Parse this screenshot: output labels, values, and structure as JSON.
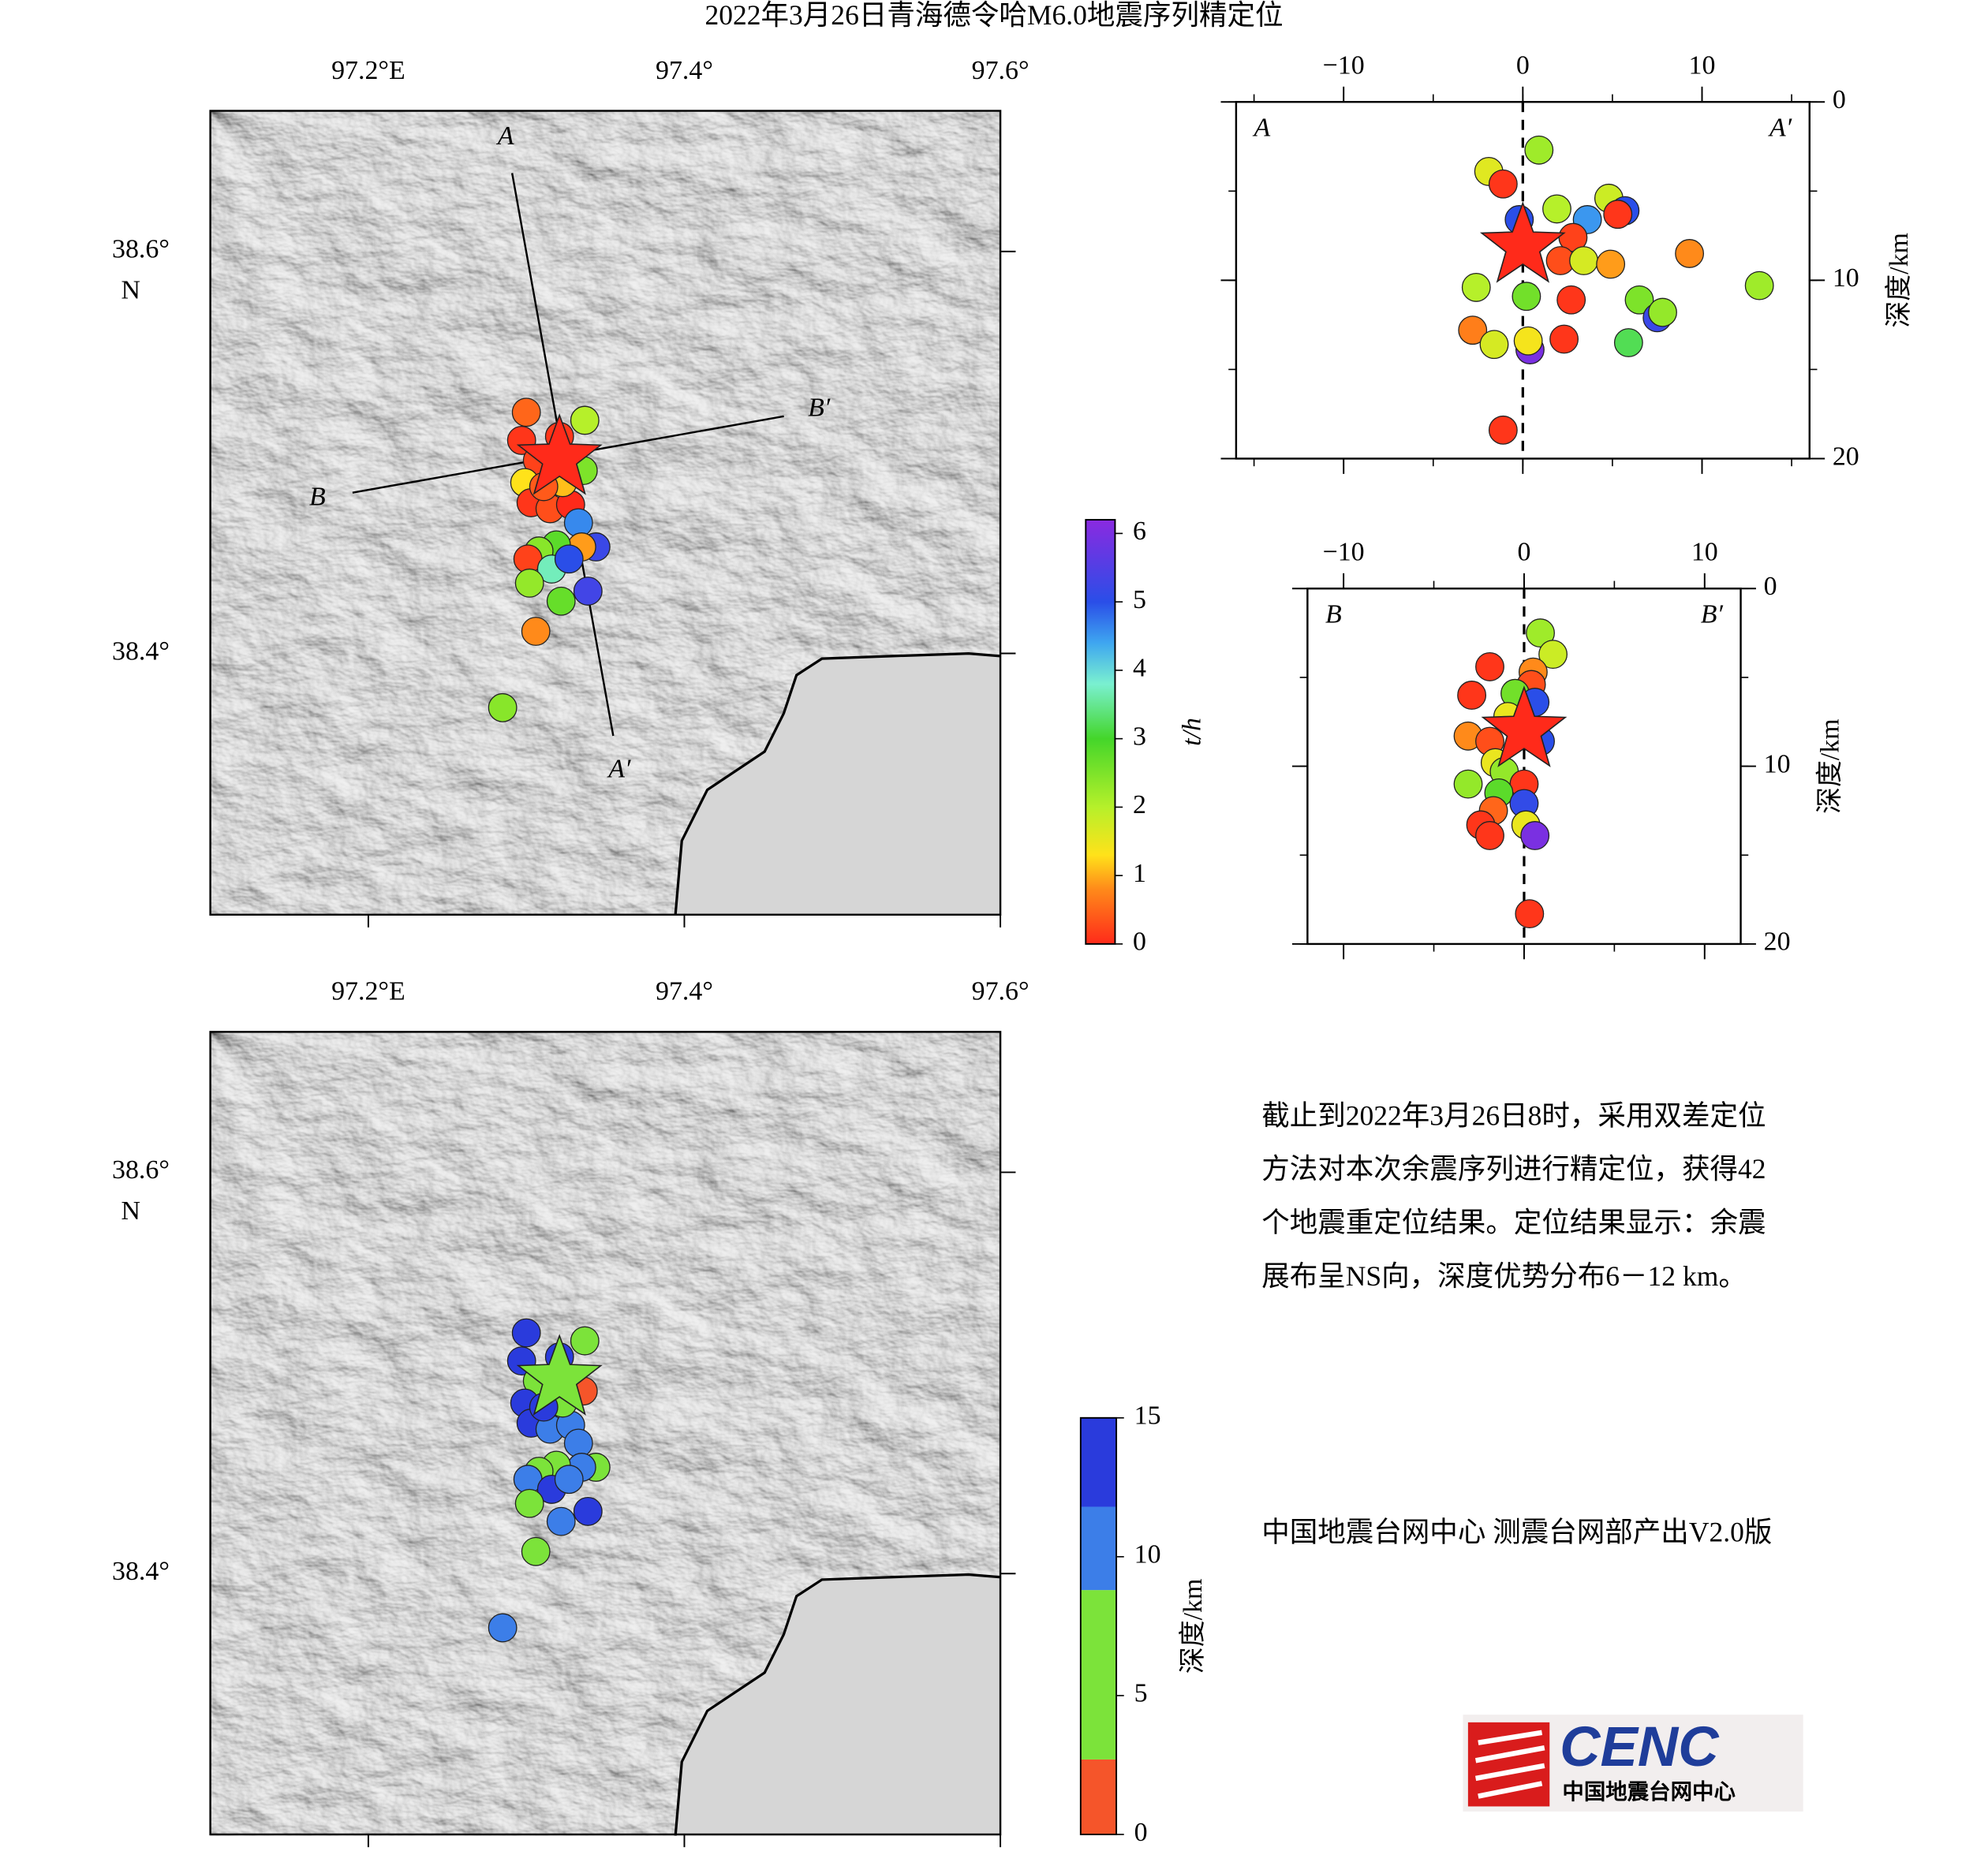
{
  "title": "2022年3月26日青海德令哈M6.0地震序列精定位",
  "chart_data": [
    {
      "type": "map",
      "xlim": [
        97.1,
        97.6
      ],
      "ylim": [
        38.27,
        38.67
      ],
      "xticks": [
        {
          "value": 97.2,
          "label": "97.2°E"
        },
        {
          "value": 97.4,
          "label": "97.4°"
        },
        {
          "value": 97.6,
          "label": "97.6°"
        }
      ],
      "yticks": [
        {
          "value": 38.4,
          "label": "38.4°"
        },
        {
          "value": 38.6,
          "label": "38.6°"
        }
      ],
      "ylabel": "N",
      "x": [
        97.3,
        97.337,
        97.297,
        97.307,
        97.336,
        97.299,
        97.303,
        97.315,
        97.328,
        97.333,
        97.344,
        97.335,
        97.319,
        97.308,
        97.301,
        97.316,
        97.327,
        97.302,
        97.339,
        97.322,
        97.306,
        97.285,
        97.321,
        97.323,
        97.311
      ],
      "y": [
        38.52,
        38.516,
        38.506,
        38.496,
        38.491,
        38.485,
        38.475,
        38.472,
        38.474,
        38.465,
        38.453,
        38.453,
        38.454,
        38.451,
        38.447,
        38.442,
        38.447,
        38.435,
        38.431,
        38.426,
        38.411,
        38.373,
        38.508,
        38.485,
        38.483
      ],
      "color_values": [
        0.5,
        2.0,
        0.1,
        0.2,
        2.5,
        1.3,
        0.1,
        0.3,
        0.0,
        4.6,
        5.2,
        0.9,
        2.8,
        2.4,
        0.2,
        3.7,
        5.0,
        2.3,
        5.3,
        2.7,
        0.8,
        2.4,
        0.1,
        1.1,
        0.4
      ],
      "mainshock": {
        "x": 97.321,
        "y": 38.497,
        "color_value": 0
      },
      "profiles": [
        {
          "start": [
            97.291,
            38.639
          ],
          "end": [
            97.355,
            38.359
          ],
          "start_label": "A",
          "end_label": "A′"
        },
        {
          "start": [
            97.19,
            38.48
          ],
          "end": [
            97.463,
            38.518
          ],
          "start_label": "B",
          "end_label": "B′"
        }
      ],
      "colorbar": {
        "label": "t/h",
        "lim": [
          0,
          6.2
        ],
        "ticks": [
          0,
          1,
          2,
          3,
          4,
          5,
          6
        ],
        "stops": [
          {
            "value": 0,
            "color": "#ff2a1a"
          },
          {
            "value": 0.8,
            "color": "#ff8a1a"
          },
          {
            "value": 1.3,
            "color": "#ffe21a"
          },
          {
            "value": 2,
            "color": "#b6f02a"
          },
          {
            "value": 3,
            "color": "#44d62a"
          },
          {
            "value": 3.8,
            "color": "#7af0d0"
          },
          {
            "value": 4.4,
            "color": "#3ea6f0"
          },
          {
            "value": 5,
            "color": "#2a4ee8"
          },
          {
            "value": 6.2,
            "color": "#8a2ae0"
          }
        ]
      }
    },
    {
      "type": "map",
      "xlim": [
        97.1,
        97.6
      ],
      "ylim": [
        38.27,
        38.67
      ],
      "xticks": [
        {
          "value": 97.2,
          "label": "97.2°E"
        },
        {
          "value": 97.4,
          "label": "97.4°"
        },
        {
          "value": 97.6,
          "label": "97.6°"
        }
      ],
      "yticks": [
        {
          "value": 38.4,
          "label": "38.4°"
        },
        {
          "value": 38.6,
          "label": "38.6°"
        }
      ],
      "ylabel": "N",
      "x": [
        97.3,
        97.337,
        97.297,
        97.307,
        97.336,
        97.299,
        97.303,
        97.315,
        97.328,
        97.333,
        97.344,
        97.335,
        97.319,
        97.308,
        97.301,
        97.316,
        97.327,
        97.302,
        97.339,
        97.322,
        97.306,
        97.285,
        97.321,
        97.323,
        97.311
      ],
      "y": [
        38.52,
        38.516,
        38.506,
        38.496,
        38.491,
        38.485,
        38.475,
        38.472,
        38.474,
        38.465,
        38.453,
        38.453,
        38.454,
        38.451,
        38.447,
        38.442,
        38.447,
        38.435,
        38.431,
        38.426,
        38.411,
        38.373,
        38.508,
        38.485,
        38.483
      ],
      "color_values": [
        13,
        7,
        12,
        7,
        2,
        13,
        13,
        10,
        10,
        10,
        7,
        10,
        7,
        7,
        10,
        13,
        10,
        7,
        13,
        10,
        7,
        10,
        13,
        7,
        12
      ],
      "mainshock": {
        "x": 97.321,
        "y": 38.497,
        "color_value": 8
      },
      "colorbar": {
        "label": "深度/km",
        "lim": [
          0,
          15
        ],
        "ticks": [
          0,
          5,
          10,
          15
        ],
        "bounds": [
          0,
          2.7,
          8.8,
          11.8,
          15
        ],
        "colors": [
          "#f5552a",
          "#7ce33a",
          "#3c7ee8",
          "#2a3bdc"
        ]
      }
    },
    {
      "type": "profile",
      "xlim": [
        -16,
        16
      ],
      "ylim": [
        0,
        20
      ],
      "minor_tick_step": 5,
      "xticks": [
        {
          "value": -10,
          "label": "−10"
        },
        0,
        10
      ],
      "yticks": [
        0,
        10,
        20
      ],
      "ylabel": "深度/km",
      "start_label": "A",
      "end_label": "A′",
      "x": [
        0.9,
        -1.9,
        -1.1,
        -0.2,
        1.9,
        3.6,
        4.8,
        5.7,
        5.3,
        2.8,
        2.1,
        3.4,
        4.9,
        9.3,
        13.2,
        -2.6,
        0.2,
        2.7,
        6.5,
        7.5,
        7.8,
        -2.8,
        -1.6,
        0.4,
        0.3,
        2.3,
        5.9,
        -1.1
      ],
      "y": [
        2.7,
        3.9,
        4.6,
        6.6,
        6.0,
        6.6,
        5.4,
        6.1,
        6.3,
        7.6,
        8.9,
        8.9,
        9.1,
        8.5,
        10.3,
        10.4,
        10.9,
        11.1,
        11.1,
        12.1,
        11.8,
        12.8,
        13.6,
        13.9,
        13.4,
        13.3,
        13.5,
        18.4
      ],
      "color_values": [
        2.2,
        1.6,
        0.1,
        5,
        2,
        4.5,
        1.8,
        5,
        0.1,
        0.2,
        0.3,
        1.7,
        0.9,
        0.8,
        2.2,
        2,
        2.6,
        0.1,
        2.5,
        5.2,
        2.3,
        0.7,
        1.7,
        6,
        1.4,
        0.1,
        3.2,
        0.1
      ],
      "mainshock": {
        "x": 0,
        "y": 8.1,
        "color_value": 0
      }
    },
    {
      "type": "profile",
      "xlim": [
        -12,
        12
      ],
      "ylim": [
        0,
        20
      ],
      "minor_tick_step": 5,
      "xticks": [
        {
          "value": -10,
          "label": "−10"
        },
        0,
        10
      ],
      "yticks": [
        0,
        10,
        20
      ],
      "ylabel": "深度/km",
      "start_label": "B",
      "end_label": "B′",
      "x": [
        0.9,
        1.6,
        -1.9,
        0.5,
        0.4,
        -2.9,
        -0.5,
        0.6,
        -0.9,
        -3.1,
        -1.9,
        0.9,
        -1.6,
        -1.1,
        -3.1,
        0,
        -1.4,
        0,
        -1.7,
        -2.4,
        0.1,
        0.6,
        -1.9,
        0.3
      ],
      "y": [
        2.5,
        3.7,
        4.4,
        4.7,
        5.4,
        6.0,
        5.9,
        6.4,
        7.2,
        8.3,
        8.6,
        8.6,
        9.8,
        10.3,
        11.0,
        11.0,
        11.5,
        12.1,
        12.5,
        13.3,
        13.3,
        13.9,
        13.9,
        18.3
      ],
      "color_values": [
        2.2,
        1.8,
        0.1,
        0.8,
        0.3,
        0.1,
        2.6,
        5,
        1.5,
        0.8,
        0.3,
        5,
        1.5,
        2.3,
        2.3,
        0.1,
        2.8,
        5.1,
        0.5,
        0.1,
        1.5,
        6,
        0.1,
        0.1
      ],
      "mainshock": {
        "x": 0,
        "y": 8.0,
        "color_value": 0
      }
    }
  ],
  "notes": {
    "paragraph": [
      "截止到2022年3月26日8时，采用双差定位",
      "方法对本次余震序列进行精定位，获得42",
      "个地震重定位结果。定位结果显示：余震",
      "展布呈NS向，深度优势分布6－12 km。"
    ],
    "credit": "中国地震台网中心 测震台网部产出V2.0版"
  },
  "logo": {
    "name": "CENC",
    "org": "中国地震台网中心"
  }
}
